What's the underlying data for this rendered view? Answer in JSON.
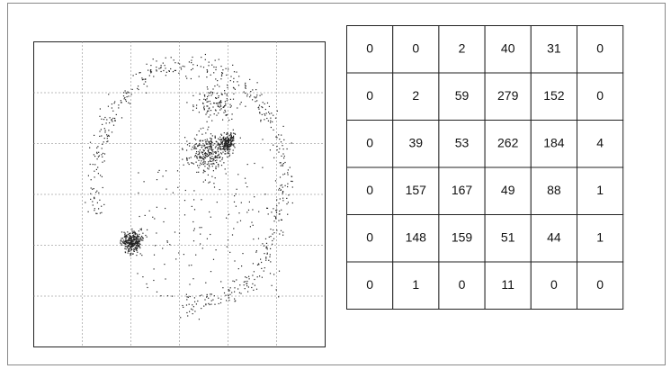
{
  "table": {
    "rows": [
      [
        0,
        0,
        2,
        40,
        31,
        0
      ],
      [
        0,
        2,
        59,
        279,
        152,
        0
      ],
      [
        0,
        39,
        53,
        262,
        184,
        4
      ],
      [
        0,
        157,
        167,
        49,
        88,
        1
      ],
      [
        0,
        148,
        159,
        51,
        44,
        1
      ],
      [
        0,
        1,
        0,
        11,
        0,
        0
      ]
    ]
  }
}
